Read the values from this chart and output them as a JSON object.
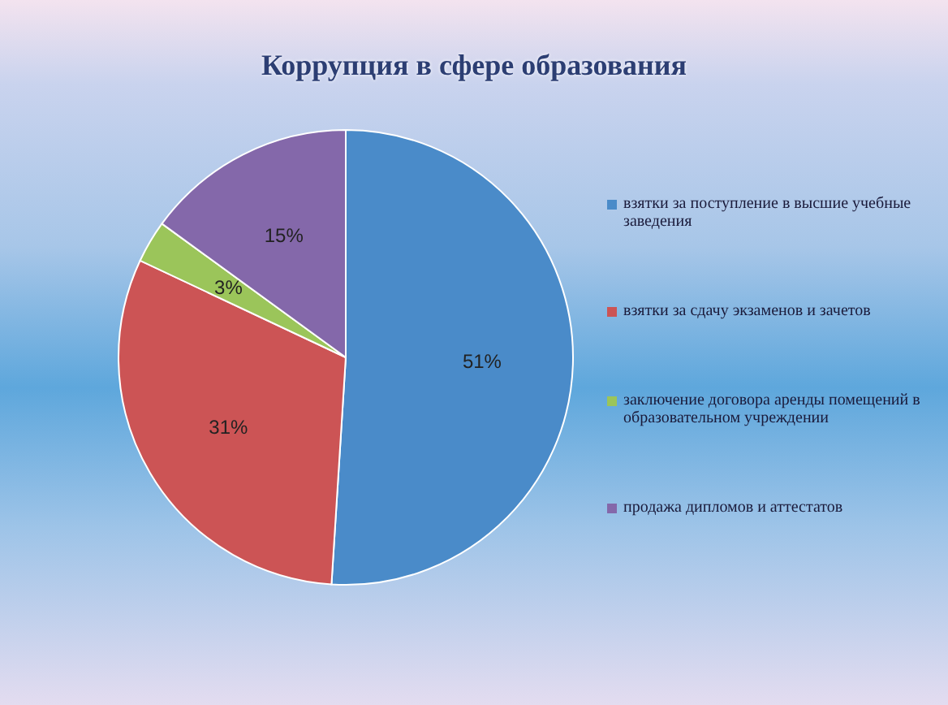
{
  "chart_data": {
    "type": "pie",
    "title": "Коррупция в сфере образования",
    "categories": [
      "взятки за поступление в высшие учебные заведения",
      "взятки за сдачу экзаменов и зачетов",
      "заключение договора аренды помещений в образовательном учреждении",
      "продажа дипломов и аттестатов"
    ],
    "values": [
      51,
      31,
      3,
      15
    ],
    "value_labels": [
      "51%",
      "31%",
      "3%",
      "15%"
    ],
    "colors": [
      "#4a8bc9",
      "#cc5455",
      "#9bc55a",
      "#8468aa"
    ],
    "legend": "right"
  }
}
